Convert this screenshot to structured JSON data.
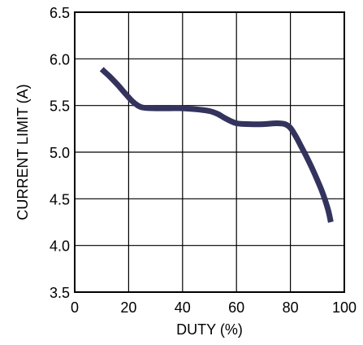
{
  "chart_data": {
    "type": "line",
    "title": "",
    "xlabel": "DUTY (%)",
    "ylabel": "CURRENT LIMIT (A)",
    "xlim": [
      0,
      100
    ],
    "ylim": [
      3.5,
      6.5
    ],
    "xticks": [
      0,
      20,
      40,
      60,
      80,
      100
    ],
    "yticks": [
      3.5,
      4.0,
      4.5,
      5.0,
      5.5,
      6.0,
      6.5
    ],
    "xtick_labels": [
      "0",
      "20",
      "40",
      "60",
      "80",
      "100"
    ],
    "ytick_labels": [
      "3.5",
      "4.0",
      "4.5",
      "5.0",
      "5.5",
      "6.0",
      "6.5"
    ],
    "grid": true,
    "legend": "none",
    "line_color": "#33335e",
    "series": [
      {
        "x": [
          10,
          13,
          16,
          19,
          22,
          25,
          30,
          35,
          40,
          45,
          50,
          53,
          56,
          60,
          65,
          70,
          75,
          78,
          80,
          82,
          84,
          86,
          88,
          90,
          92,
          94,
          95
        ],
        "y": [
          5.89,
          5.81,
          5.72,
          5.62,
          5.53,
          5.48,
          5.47,
          5.47,
          5.47,
          5.46,
          5.44,
          5.41,
          5.36,
          5.31,
          5.3,
          5.3,
          5.31,
          5.3,
          5.26,
          5.17,
          5.06,
          4.95,
          4.83,
          4.7,
          4.56,
          4.38,
          4.25
        ]
      }
    ]
  }
}
